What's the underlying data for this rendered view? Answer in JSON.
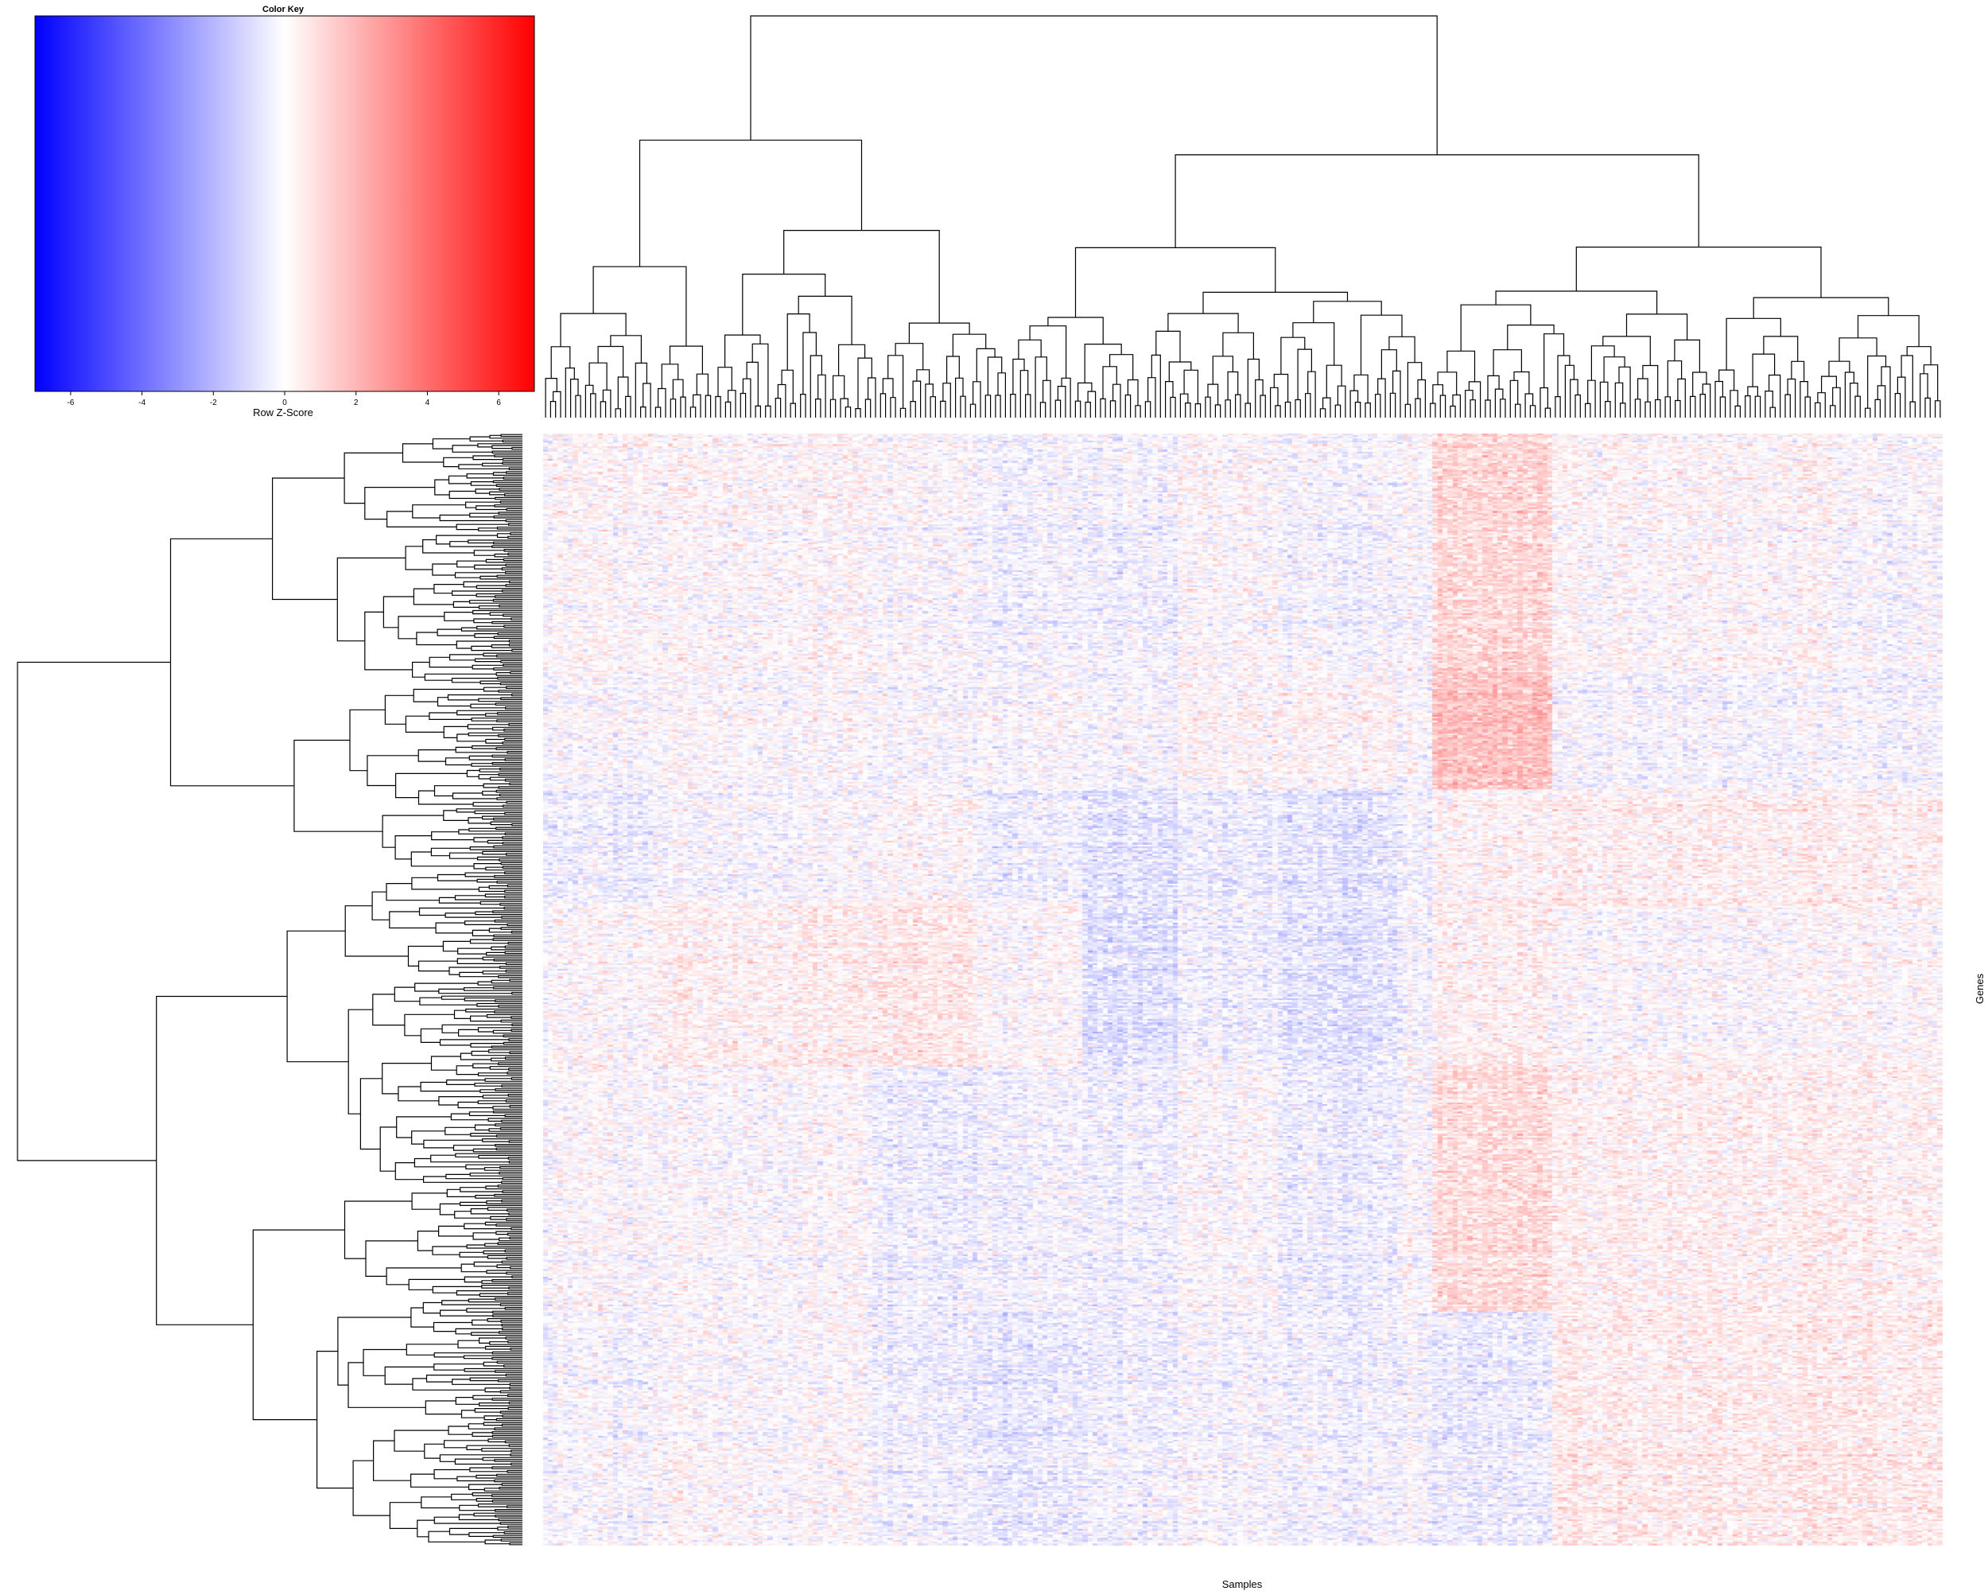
{
  "chart_data": {
    "type": "heatmap",
    "title": "",
    "xlabel": "Samples",
    "ylabel": "Genes",
    "n_samples": 280,
    "n_genes": 600,
    "cell_values": "row z-scores, mostly within -1.5..1.5; individual values not readable",
    "color_scale": {
      "low": "#0000ff",
      "mid": "#ffffff",
      "high": "#ff0000",
      "range": [
        -7,
        7
      ]
    },
    "color_key": {
      "title": "Color Key",
      "xlabel": "Row Z-Score",
      "ticks": [
        "-6",
        "-4",
        "-2",
        "0",
        "2",
        "4",
        "6"
      ],
      "tick_values": [
        -6,
        -4,
        -2,
        0,
        2,
        4,
        6
      ]
    },
    "column_clusters": [
      {
        "start": 0.0,
        "end": 0.08,
        "pattern": [
          0.15,
          -0.05,
          -0.3,
          0.1,
          0.05,
          -0.1
        ]
      },
      {
        "start": 0.08,
        "end": 0.155,
        "pattern": [
          0.1,
          0.0,
          -0.1,
          0.3,
          0.0,
          0.05
        ]
      },
      {
        "start": 0.155,
        "end": 0.235,
        "pattern": [
          0.1,
          -0.05,
          -0.1,
          0.35,
          0.0,
          0.0
        ]
      },
      {
        "start": 0.235,
        "end": 0.31,
        "pattern": [
          0.0,
          -0.15,
          0.1,
          0.5,
          -0.35,
          -0.3
        ]
      },
      {
        "start": 0.31,
        "end": 0.385,
        "pattern": [
          -0.2,
          -0.05,
          -0.3,
          0.1,
          -0.2,
          -0.45
        ]
      },
      {
        "start": 0.385,
        "end": 0.455,
        "pattern": [
          -0.25,
          -0.2,
          -0.6,
          -0.7,
          -0.3,
          -0.3
        ]
      },
      {
        "start": 0.455,
        "end": 0.525,
        "pattern": [
          0.05,
          0.1,
          -0.4,
          -0.3,
          0.0,
          -0.15
        ]
      },
      {
        "start": 0.525,
        "end": 0.61,
        "pattern": [
          -0.1,
          0.2,
          -0.5,
          -0.55,
          -0.3,
          -0.2
        ]
      },
      {
        "start": 0.61,
        "end": 0.635,
        "pattern": [
          0.0,
          -0.05,
          -0.15,
          -0.15,
          0.0,
          -0.1
        ]
      },
      {
        "start": 0.635,
        "end": 0.72,
        "pattern": [
          0.9,
          1.4,
          0.2,
          0.3,
          0.8,
          -0.4
        ]
      },
      {
        "start": 0.72,
        "end": 0.92,
        "pattern": [
          0.15,
          -0.15,
          0.35,
          0.05,
          0.35,
          0.45
        ]
      },
      {
        "start": 0.92,
        "end": 1.0,
        "pattern": [
          -0.05,
          -0.2,
          0.3,
          0.1,
          0.3,
          0.45
        ]
      }
    ],
    "row_bands": [
      0.0,
      0.215,
      0.32,
      0.425,
      0.57,
      0.79,
      1.0
    ]
  }
}
